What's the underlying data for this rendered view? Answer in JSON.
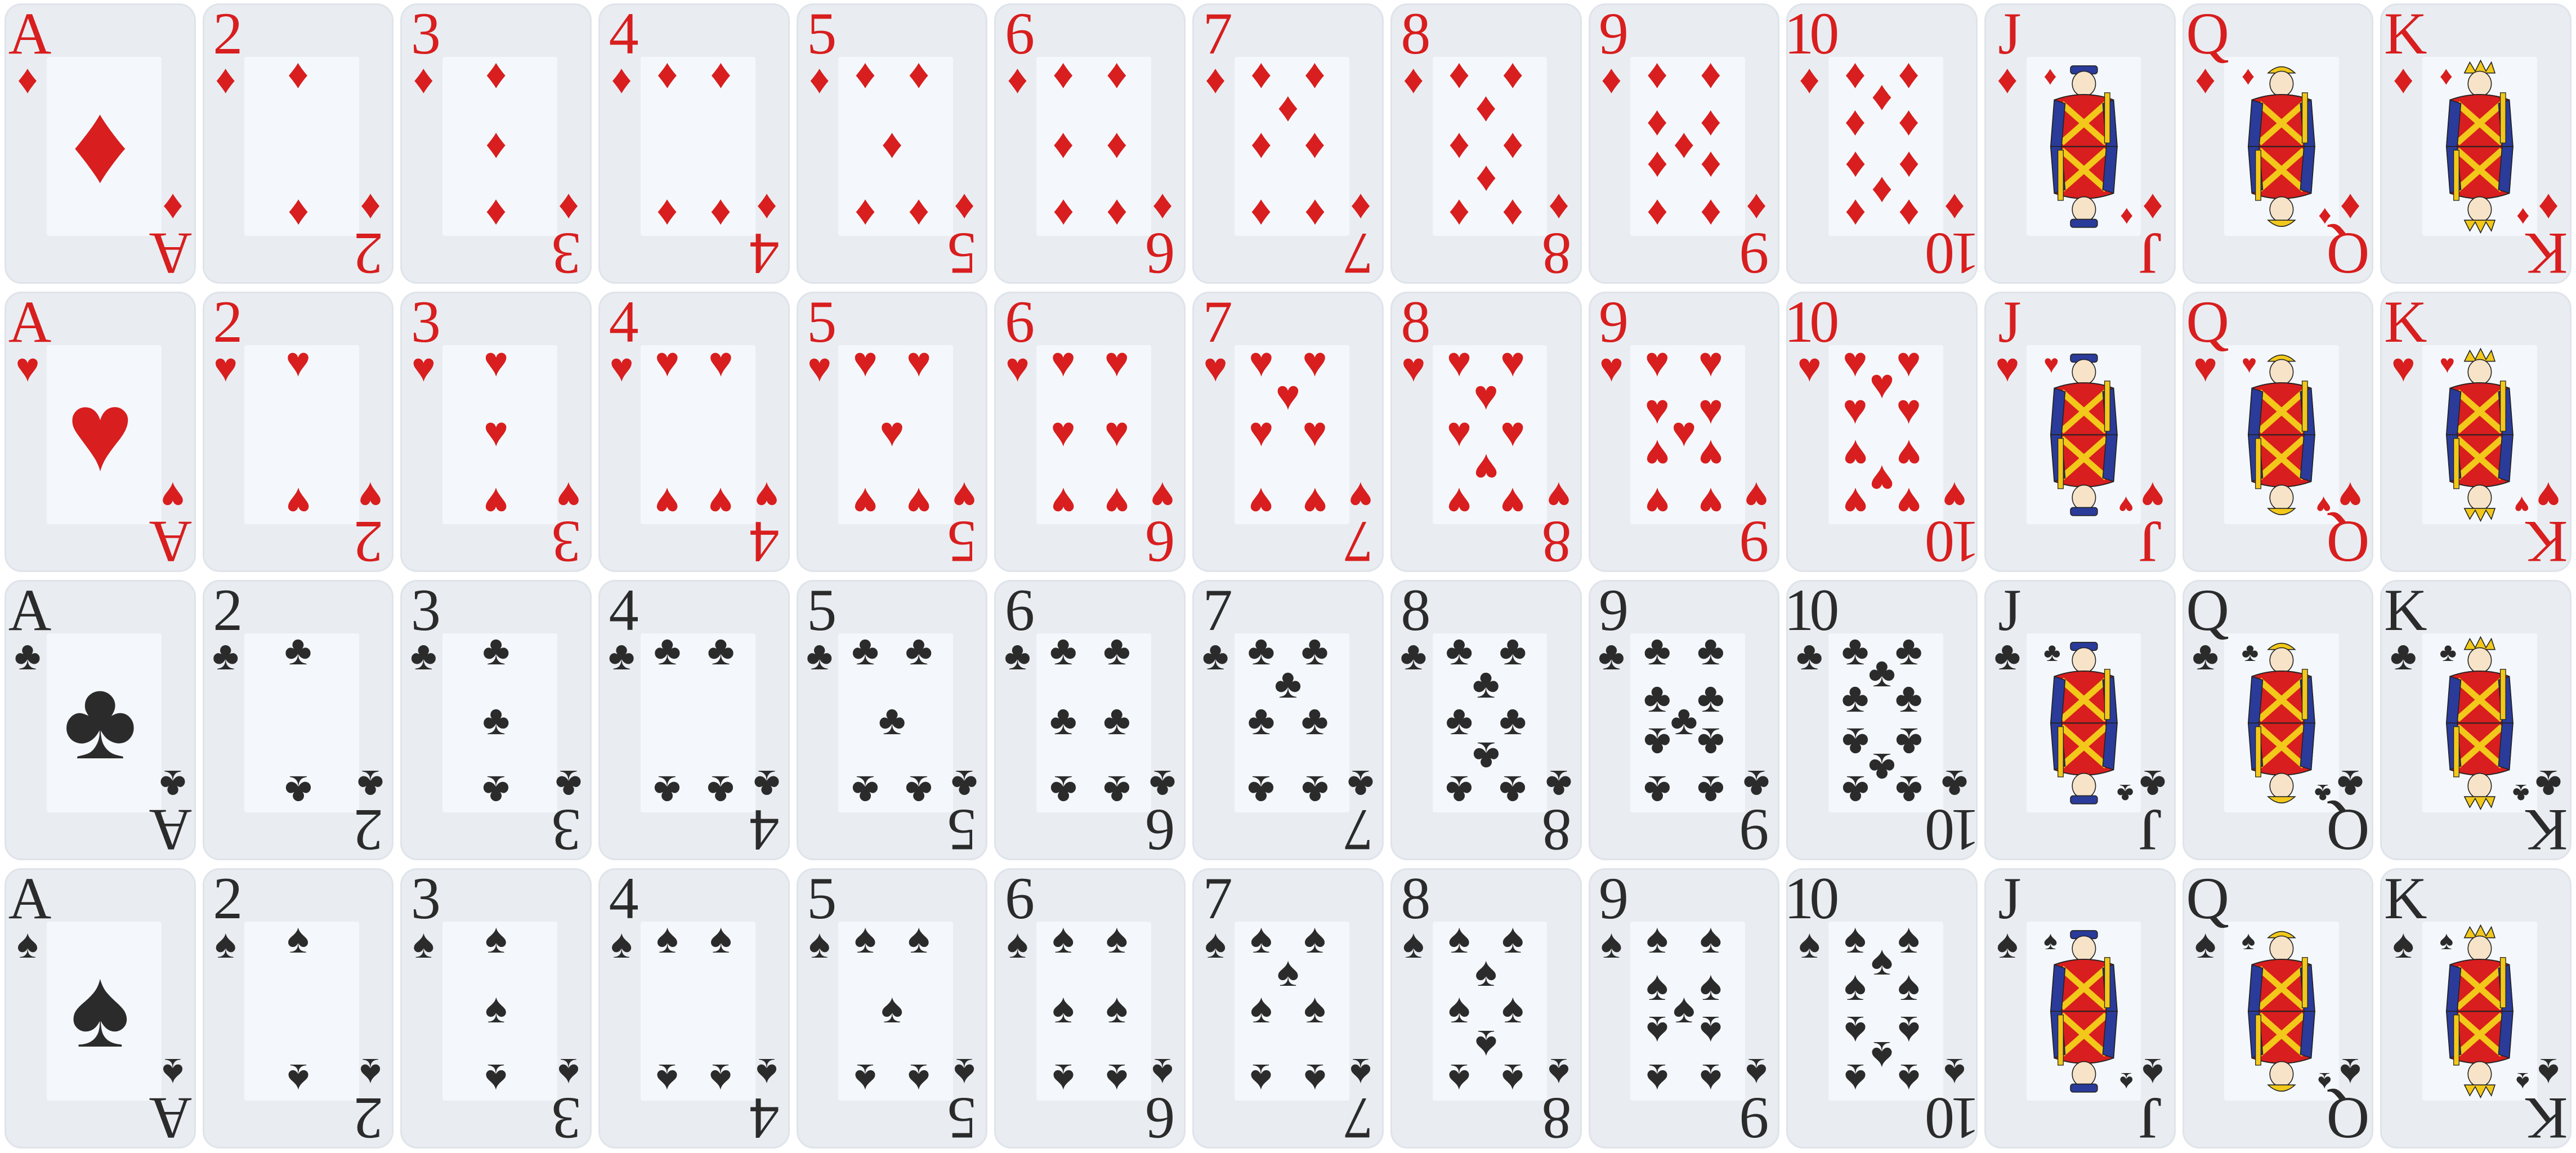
{
  "deck": {
    "ranks": [
      "A",
      "2",
      "3",
      "4",
      "5",
      "6",
      "7",
      "8",
      "9",
      "10",
      "J",
      "Q",
      "K"
    ],
    "rows": [
      {
        "suit": "diamonds",
        "glyph": "♦",
        "color": "#d81e1e",
        "face_colors": {
          "robe": "#d81e1e",
          "trim": "#2a3b9a",
          "gold": "#f2c81a"
        }
      },
      {
        "suit": "hearts",
        "glyph": "♥",
        "color": "#d81e1e",
        "face_colors": {
          "robe": "#d81e1e",
          "trim": "#2a3b9a",
          "gold": "#f2c81a"
        }
      },
      {
        "suit": "clubs",
        "glyph": "♣",
        "color": "#2b2b2b",
        "face_colors": {
          "robe": "#d81e1e",
          "trim": "#2a3b9a",
          "gold": "#f2c81a"
        }
      },
      {
        "suit": "spades",
        "glyph": "♠",
        "color": "#2b2b2b",
        "face_colors": {
          "robe": "#d81e1e",
          "trim": "#2a3b9a",
          "gold": "#f2c81a"
        }
      }
    ],
    "face_icons": {
      "J": "jack-figure-icon",
      "Q": "queen-figure-icon",
      "K": "king-figure-icon"
    }
  }
}
